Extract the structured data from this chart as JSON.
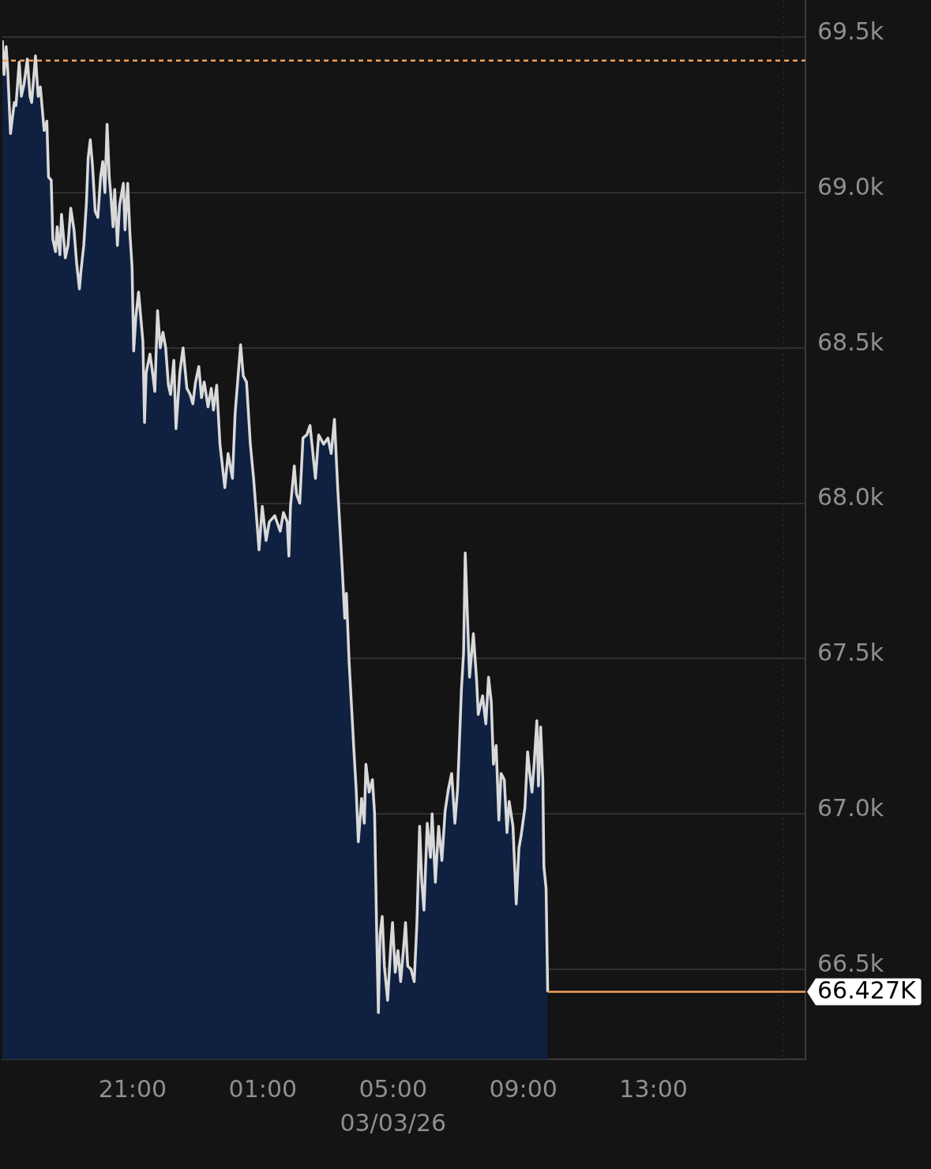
{
  "chart_data": {
    "type": "area",
    "color": "#0f2040",
    "x": [
      "--03-02T17:00",
      "--03-02T17:03",
      "--03-02T17:07",
      "--03-02T17:10",
      "--03-02T17:15",
      "--03-02T17:22",
      "--03-02T17:25",
      "--03-02T17:31",
      "--03-02T17:35",
      "--03-02T17:40",
      "--03-02T17:46",
      "--03-02T17:51",
      "--03-02T17:54",
      "--03-02T18:01",
      "--03-02T18:06",
      "--03-02T18:10",
      "--03-02T18:17",
      "--03-02T18:22",
      "--03-02T18:25",
      "--03-02T18:30",
      "--03-02T18:33",
      "--03-02T18:38",
      "--03-02T18:41",
      "--03-02T18:46",
      "--03-02T18:49",
      "--03-02T18:56",
      "--03-02T19:01",
      "--03-02T19:06",
      "--03-02T19:12",
      "--03-02T19:17",
      "--03-02T19:22",
      "--03-02T19:25",
      "--03-02T19:30",
      "--03-02T19:35",
      "--03-02T19:38",
      "--03-02T19:42",
      "--03-02T19:46",
      "--03-02T19:51",
      "--03-02T19:56",
      "--03-02T20:01",
      "--03-02T20:05",
      "--03-02T20:09",
      "--03-02T20:13",
      "--03-02T20:17",
      "--03-02T20:20",
      "--03-02T20:24",
      "--03-02T20:27",
      "--03-02T20:32",
      "--03-02T20:36",
      "--03-02T20:43",
      "--03-02T20:46",
      "--03-02T20:51",
      "--03-02T20:55",
      "--03-02T20:59",
      "--03-02T21:02",
      "--03-02T21:06",
      "--03-02T21:11",
      "--03-02T21:15",
      "--03-02T21:19",
      "--03-02T21:22",
      "--03-02T21:25",
      "--03-02T21:32",
      "--03-02T21:36",
      "--03-02T21:41",
      "--03-02T21:46",
      "--03-02T21:51",
      "--03-02T21:56",
      "--03-02T22:01",
      "--03-02T22:06",
      "--03-02T22:10",
      "--03-02T22:16",
      "--03-02T22:20",
      "--03-02T22:27",
      "--03-02T22:33",
      "--03-02T22:40",
      "--03-02T22:46",
      "--03-02T22:51",
      "--03-02T22:56",
      "--03-02T23:02",
      "--03-02T23:07",
      "--03-02T23:12",
      "--03-02T23:19",
      "--03-02T23:25",
      "--03-02T23:29",
      "--03-02T23:35",
      "--03-02T23:41",
      "--03-02T23:50",
      "--03-02T23:56",
      "--03-03T00:04",
      "--03-03T00:09",
      "--03-03T00:19",
      "--03-03T00:24",
      "--03-03T00:30",
      "--03-03T00:37",
      "--03-03T00:43",
      "--03-03T00:50",
      "--03-03T00:53",
      "--03-03T00:59",
      "--03-03T01:06",
      "--03-03T01:12",
      "--03-03T01:22",
      "--03-03T01:32",
      "--03-03T01:38",
      "--03-03T01:45",
      "--03-03T01:48",
      "--03-03T01:51",
      "--03-03T01:58",
      "--03-03T02:02",
      "--03-03T02:08",
      "--03-03T02:14",
      "--03-03T02:21",
      "--03-03T02:27",
      "--03-03T02:37",
      "--03-03T02:43",
      "--03-03T02:52",
      "--03-03T03:00",
      "--03-03T03:06",
      "--03-03T03:12",
      "--03-03T03:18",
      "--03-03T03:26",
      "--03-03T03:31",
      "--03-03T03:34",
      "--03-03T03:39",
      "--03-03T03:44",
      "--03-03T03:48",
      "--03-03T03:52",
      "--03-03T03:56",
      "--03-03T04:02",
      "--03-03T04:07",
      "--03-03T04:10",
      "--03-03T04:16",
      "--03-03T04:22",
      "--03-03T04:26",
      "--03-03T04:30",
      "--03-03T04:33",
      "--03-03T04:36",
      "--03-03T04:40",
      "--03-03T04:44",
      "--03-03T04:50",
      "--03-03T04:56",
      "--03-03T04:59",
      "--03-03T05:04",
      "--03-03T05:09",
      "--03-03T05:14",
      "--03-03T05:19",
      "--03-03T05:23",
      "--03-03T05:27",
      "--03-03T05:33",
      "--03-03T05:39",
      "--03-03T05:44",
      "--03-03T05:49",
      "--03-03T05:53",
      "--03-03T05:57",
      "--03-03T06:03",
      "--03-03T06:09",
      "--03-03T06:12",
      "--03-03T06:18",
      "--03-03T06:24",
      "--03-03T06:30",
      "--03-03T06:36",
      "--03-03T06:42",
      "--03-03T06:48",
      "--03-03T06:54",
      "--03-03T06:59",
      "--03-03T07:06",
      "--03-03T07:10",
      "--03-03T07:13",
      "--03-03T07:18",
      "--03-03T07:21",
      "--03-03T07:28",
      "--03-03T07:34",
      "--03-03T07:37",
      "--03-03T07:45",
      "--03-03T07:51",
      "--03-03T07:56",
      "--03-03T08:01",
      "--03-03T08:05",
      "--03-03T08:10",
      "--03-03T08:15",
      "--03-03T08:19",
      "--03-03T08:25",
      "--03-03T08:30",
      "--03-03T08:34",
      "--03-03T08:41",
      "--03-03T08:47",
      "--03-03T08:52",
      "--03-03T08:56",
      "--03-03T09:03",
      "--03-03T09:08",
      "--03-03T09:12",
      "--03-03T09:16",
      "--03-03T09:20",
      "--03-03T09:25",
      "--03-03T09:28",
      "--03-03T09:32",
      "--03-03T09:36",
      "--03-03T09:38",
      "--03-03T09:42",
      "--03-03T09:45"
    ],
    "values": [
      69490,
      69380,
      69470,
      69390,
      69190,
      69290,
      69280,
      69420,
      69310,
      69350,
      69430,
      69310,
      69290,
      69440,
      69310,
      69340,
      69200,
      69230,
      69050,
      69040,
      68850,
      68810,
      68890,
      68800,
      68930,
      68790,
      68830,
      68950,
      68880,
      68770,
      68690,
      68750,
      68830,
      68970,
      69110,
      69170,
      69090,
      68940,
      68920,
      69050,
      69100,
      69000,
      69220,
      69050,
      68990,
      68890,
      69010,
      68830,
      68960,
      69030,
      68880,
      69030,
      68870,
      68760,
      68490,
      68600,
      68680,
      68600,
      68520,
      68260,
      68420,
      68480,
      68430,
      68360,
      68620,
      68500,
      68550,
      68500,
      68380,
      68350,
      68460,
      68240,
      68420,
      68500,
      68370,
      68350,
      68320,
      68390,
      68440,
      68340,
      68390,
      68310,
      68370,
      68300,
      68380,
      68190,
      68050,
      68160,
      68080,
      68290,
      68510,
      68410,
      68390,
      68190,
      68080,
      67920,
      67850,
      67990,
      67880,
      67940,
      67960,
      67910,
      67970,
      67940,
      67830,
      67990,
      68120,
      68030,
      68000,
      68210,
      68220,
      68250,
      68080,
      68220,
      68190,
      68210,
      68160,
      68270,
      68050,
      67800,
      67630,
      67710,
      67490,
      67330,
      67200,
      67080,
      66910,
      67050,
      66970,
      67160,
      67070,
      67110,
      67000,
      66600,
      66360,
      66610,
      66670,
      66510,
      66400,
      66580,
      66650,
      66490,
      66560,
      66460,
      66560,
      66650,
      66510,
      66500,
      66460,
      66650,
      66960,
      66780,
      66690,
      66970,
      66860,
      67000,
      66780,
      66960,
      66850,
      67010,
      67080,
      67130,
      66970,
      67080,
      67400,
      67520,
      67840,
      67590,
      67440,
      67580,
      67430,
      67320,
      67380,
      67290,
      67440,
      67360,
      67160,
      67220,
      66980,
      67130,
      67110,
      66940,
      67040,
      66960,
      66710,
      66890,
      66930,
      67020,
      67200,
      67130,
      67070,
      67160,
      67300,
      67090,
      67280,
      67110,
      66830,
      66760,
      66427
    ],
    "xlim": [
      "--03-02T17:00",
      "--03-03T17:40"
    ],
    "xticks": [
      {
        "value": "--03-02T21:00",
        "label": "21:00"
      },
      {
        "value": "--03-03T01:00",
        "label": "01:00"
      },
      {
        "value": "--03-03T05:00",
        "label": "05:00\n03/03/26"
      },
      {
        "value": "--03-03T09:00",
        "label": "09:00"
      },
      {
        "value": "--03-03T13:00",
        "label": "13:00"
      }
    ],
    "ylim": [
      66210,
      69620
    ],
    "yticks": [
      {
        "value": 66500,
        "label": "66.5k"
      },
      {
        "value": 67000,
        "label": "67.0k"
      },
      {
        "value": 67500,
        "label": "67.5k"
      },
      {
        "value": 68000,
        "label": "68.0k"
      },
      {
        "value": 68500,
        "label": "68.5k"
      },
      {
        "value": 69000,
        "label": "69.0k"
      },
      {
        "value": 69500,
        "label": "69.5k"
      }
    ],
    "grid": "y",
    "ref_lines": [
      {
        "axis": "y",
        "value": 69425,
        "color": "#f2a257",
        "line_style": "dashed"
      },
      {
        "axis": "y",
        "value": 66427,
        "label": "66.427K",
        "color": "#f2a257"
      },
      {
        "axis": "x",
        "value": "--03-03T17:00",
        "color": "#2e2e2e",
        "line_style": "dotted"
      }
    ]
  }
}
